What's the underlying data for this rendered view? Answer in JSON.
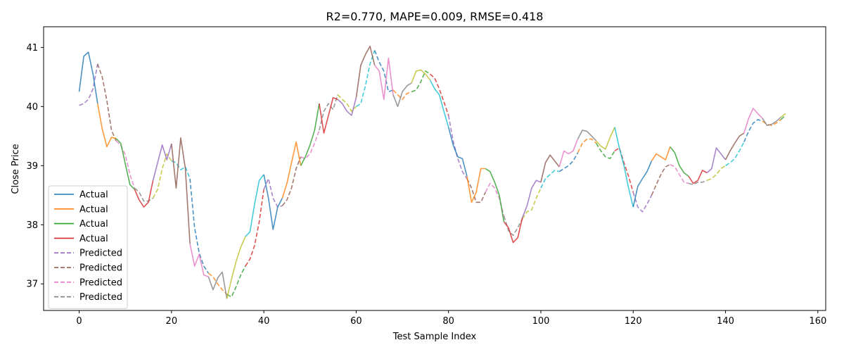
{
  "chart_data": {
    "type": "line",
    "title": "R2=0.770, MAPE=0.009, RMSE=0.418",
    "xlabel": "Test Sample Index",
    "ylabel": "Close Price",
    "xlim": [
      -7.7,
      161.7
    ],
    "ylim": [
      36.55,
      41.35
    ],
    "x_ticks": [
      0,
      20,
      40,
      60,
      80,
      100,
      120,
      140,
      160
    ],
    "y_ticks": [
      37,
      38,
      39,
      40,
      41
    ],
    "grid": false,
    "legend_placement": "lower-left",
    "segment_colors": [
      "#1f77b4",
      "#ff7f0e",
      "#2ca02c",
      "#d62728",
      "#9467bd",
      "#8c564b",
      "#e377c2",
      "#7f7f7f",
      "#bcbd22",
      "#17becf"
    ],
    "actual": [
      40.25,
      40.85,
      40.92,
      40.55,
      40.05,
      39.62,
      39.32,
      39.48,
      39.46,
      39.38,
      39.03,
      38.68,
      38.6,
      38.42,
      38.3,
      38.38,
      38.75,
      39.05,
      39.35,
      39.1,
      39.37,
      38.62,
      39.47,
      38.95,
      37.68,
      37.3,
      37.5,
      37.15,
      37.12,
      36.9,
      37.1,
      37.2,
      36.75,
      37.08,
      37.38,
      37.62,
      37.8,
      37.88,
      38.35,
      38.75,
      38.85,
      38.45,
      37.92,
      38.3,
      38.45,
      38.7,
      39.05,
      39.4,
      39.0,
      39.15,
      39.35,
      39.6,
      40.05,
      39.55,
      39.85,
      40.15,
      40.12,
      40.05,
      39.92,
      39.85,
      40.15,
      40.7,
      40.88,
      41.02,
      40.7,
      40.6,
      40.12,
      40.82,
      40.2,
      40.0,
      40.25,
      40.35,
      40.4,
      40.6,
      40.62,
      40.55,
      40.45,
      40.3,
      40.2,
      39.92,
      39.65,
      39.35,
      39.15,
      39.12,
      38.82,
      38.38,
      38.55,
      38.95,
      38.95,
      38.9,
      38.72,
      38.5,
      38.05,
      37.95,
      37.7,
      37.78,
      38.12,
      38.32,
      38.62,
      38.75,
      38.72,
      39.05,
      39.18,
      39.08,
      38.98,
      39.25,
      39.2,
      39.25,
      39.45,
      39.6,
      39.58,
      39.5,
      39.42,
      39.33,
      39.28,
      39.48,
      39.65,
      39.3,
      39.0,
      38.62,
      38.3,
      38.65,
      38.78,
      38.9,
      39.08,
      39.2,
      39.15,
      39.1,
      39.32,
      39.22,
      39.0,
      38.88,
      38.82,
      38.7,
      38.75,
      38.92,
      38.88,
      38.95,
      39.3,
      39.2,
      39.1,
      39.25,
      39.38,
      39.5,
      39.55,
      39.8,
      39.97,
      39.88,
      39.8,
      39.68,
      39.7,
      39.75,
      39.82,
      39.88
    ],
    "predicted": [
      40.02,
      40.05,
      40.12,
      40.3,
      40.72,
      40.5,
      40.1,
      39.6,
      39.42,
      39.35,
      39.18,
      38.85,
      38.62,
      38.55,
      38.4,
      38.4,
      38.45,
      38.6,
      38.95,
      39.2,
      39.08,
      39.05,
      38.93,
      38.98,
      38.78,
      37.95,
      37.52,
      37.3,
      37.18,
      37.12,
      37.0,
      36.9,
      36.82,
      36.78,
      36.95,
      37.15,
      37.3,
      37.42,
      37.65,
      38.05,
      38.6,
      38.78,
      38.45,
      38.3,
      38.32,
      38.42,
      38.62,
      38.95,
      39.15,
      39.12,
      39.2,
      39.38,
      39.6,
      39.92,
      40.05,
      39.95,
      40.2,
      40.12,
      40.05,
      39.92,
      40.0,
      40.05,
      40.35,
      40.72,
      40.95,
      40.75,
      40.6,
      40.25,
      40.28,
      40.2,
      40.12,
      40.22,
      40.25,
      40.28,
      40.42,
      40.6,
      40.55,
      40.48,
      40.3,
      40.08,
      39.85,
      39.42,
      39.12,
      38.9,
      38.78,
      38.62,
      38.38,
      38.38,
      38.55,
      38.7,
      38.62,
      38.45,
      38.15,
      37.9,
      37.82,
      37.95,
      38.1,
      38.22,
      38.25,
      38.45,
      38.62,
      38.78,
      38.85,
      38.92,
      38.9,
      38.95,
      39.0,
      39.08,
      39.22,
      39.38,
      39.45,
      39.45,
      39.38,
      39.25,
      39.15,
      39.12,
      39.25,
      39.3,
      39.05,
      38.82,
      38.55,
      38.3,
      38.22,
      38.35,
      38.5,
      38.68,
      38.85,
      38.98,
      39.02,
      38.98,
      38.85,
      38.72,
      38.7,
      38.68,
      38.72,
      38.72,
      38.75,
      38.78,
      38.85,
      38.95,
      39.0,
      39.05,
      39.12,
      39.25,
      39.4,
      39.58,
      39.72,
      39.78,
      39.75,
      39.7,
      39.68,
      39.72,
      39.78,
      39.85
    ],
    "series": [
      {
        "name": "Actual",
        "style": "solid",
        "color": "#1f77b4"
      },
      {
        "name": "Actual",
        "style": "solid",
        "color": "#ff7f0e"
      },
      {
        "name": "Actual",
        "style": "solid",
        "color": "#2ca02c"
      },
      {
        "name": "Actual",
        "style": "solid",
        "color": "#d62728"
      },
      {
        "name": "Predicted",
        "style": "dashed",
        "color": "#9467bd"
      },
      {
        "name": "Predicted",
        "style": "dashed",
        "color": "#8c564b"
      },
      {
        "name": "Predicted",
        "style": "dashed",
        "color": "#e377c2"
      },
      {
        "name": "Predicted",
        "style": "dashed",
        "color": "#7f7f7f"
      }
    ]
  }
}
